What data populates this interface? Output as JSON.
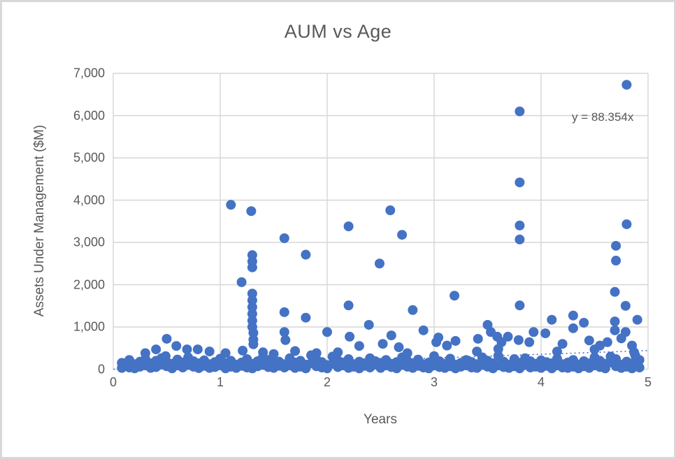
{
  "window": {
    "background": "#ffffff",
    "frame_border_color": "#d8d8d8"
  },
  "chart_data": {
    "type": "scatter",
    "title": "AUM vs Age",
    "xlabel": "Years",
    "ylabel": "Assets Under Management ($M)",
    "xlim": [
      0,
      5
    ],
    "ylim": [
      0,
      7000
    ],
    "grid": true,
    "legend": "none",
    "marker_color": "#4472C4",
    "text_color": "#595959",
    "gridline_color": "#d6d6d6",
    "xticks": [
      {
        "value": 0,
        "label": "0"
      },
      {
        "value": 1,
        "label": "1"
      },
      {
        "value": 2,
        "label": "2"
      },
      {
        "value": 3,
        "label": "3"
      },
      {
        "value": 4,
        "label": "4"
      },
      {
        "value": 5,
        "label": "5"
      }
    ],
    "yticks": [
      {
        "value": 0,
        "label": "0"
      },
      {
        "value": 1000,
        "label": "1,000"
      },
      {
        "value": 2000,
        "label": "2,000"
      },
      {
        "value": 3000,
        "label": "3,000"
      },
      {
        "value": 4000,
        "label": "4,000"
      },
      {
        "value": 5000,
        "label": "5,000"
      },
      {
        "value": 6000,
        "label": "6,000"
      },
      {
        "value": 7000,
        "label": "7,000"
      }
    ],
    "trendline": {
      "equation_label": "y = 88.354x",
      "slope": 88.354,
      "intercept": 0,
      "style": "dotted"
    },
    "points": [
      [
        0.3,
        380
      ],
      [
        0.4,
        470
      ],
      [
        0.49,
        310
      ],
      [
        0.5,
        720
      ],
      [
        0.59,
        550
      ],
      [
        0.69,
        470
      ],
      [
        0.79,
        470
      ],
      [
        0.9,
        420
      ],
      [
        1.05,
        380
      ],
      [
        1.1,
        3890
      ],
      [
        1.2,
        2060
      ],
      [
        1.21,
        440
      ],
      [
        1.29,
        3740
      ],
      [
        1.3,
        2700
      ],
      [
        1.3,
        2550
      ],
      [
        1.3,
        2410
      ],
      [
        1.3,
        1790
      ],
      [
        1.3,
        1630
      ],
      [
        1.3,
        1470
      ],
      [
        1.3,
        1310
      ],
      [
        1.3,
        1150
      ],
      [
        1.3,
        1000
      ],
      [
        1.31,
        860
      ],
      [
        1.31,
        700
      ],
      [
        1.31,
        590
      ],
      [
        1.4,
        400
      ],
      [
        1.5,
        360
      ],
      [
        1.6,
        3100
      ],
      [
        1.6,
        1350
      ],
      [
        1.6,
        880
      ],
      [
        1.61,
        690
      ],
      [
        1.7,
        430
      ],
      [
        1.8,
        2710
      ],
      [
        1.8,
        1220
      ],
      [
        1.9,
        380
      ],
      [
        2.0,
        880
      ],
      [
        2.1,
        400
      ],
      [
        2.2,
        3380
      ],
      [
        2.2,
        1510
      ],
      [
        2.21,
        770
      ],
      [
        2.3,
        550
      ],
      [
        2.39,
        1050
      ],
      [
        2.49,
        2500
      ],
      [
        2.52,
        600
      ],
      [
        2.59,
        3760
      ],
      [
        2.6,
        800
      ],
      [
        2.67,
        520
      ],
      [
        2.7,
        3180
      ],
      [
        2.75,
        380
      ],
      [
        2.8,
        1400
      ],
      [
        2.9,
        920
      ],
      [
        3.02,
        640
      ],
      [
        3.04,
        750
      ],
      [
        3.12,
        560
      ],
      [
        3.19,
        1740
      ],
      [
        3.2,
        670
      ],
      [
        3.4,
        420
      ],
      [
        3.41,
        720
      ],
      [
        3.5,
        1050
      ],
      [
        3.53,
        880
      ],
      [
        3.59,
        770
      ],
      [
        3.6,
        480
      ],
      [
        3.63,
        640
      ],
      [
        3.69,
        770
      ],
      [
        3.79,
        690
      ],
      [
        3.8,
        6100
      ],
      [
        3.8,
        4420
      ],
      [
        3.8,
        3400
      ],
      [
        3.8,
        3070
      ],
      [
        3.8,
        1510
      ],
      [
        3.89,
        640
      ],
      [
        3.93,
        880
      ],
      [
        4.04,
        850
      ],
      [
        4.1,
        1170
      ],
      [
        4.15,
        420
      ],
      [
        4.2,
        600
      ],
      [
        4.3,
        1270
      ],
      [
        4.3,
        970
      ],
      [
        4.4,
        1100
      ],
      [
        4.45,
        680
      ],
      [
        4.5,
        470
      ],
      [
        4.55,
        560
      ],
      [
        4.62,
        640
      ],
      [
        4.65,
        300
      ],
      [
        4.69,
        1830
      ],
      [
        4.69,
        1130
      ],
      [
        4.69,
        920
      ],
      [
        4.7,
        2920
      ],
      [
        4.7,
        2570
      ],
      [
        4.75,
        730
      ],
      [
        4.79,
        1500
      ],
      [
        4.79,
        880
      ],
      [
        4.8,
        6730
      ],
      [
        4.8,
        3430
      ],
      [
        4.85,
        560
      ],
      [
        4.87,
        400
      ],
      [
        4.9,
        1170
      ],
      [
        0.08,
        30
      ],
      [
        0.08,
        150
      ],
      [
        0.12,
        80
      ],
      [
        0.15,
        220
      ],
      [
        0.15,
        40
      ],
      [
        0.2,
        120
      ],
      [
        0.2,
        20
      ],
      [
        0.25,
        180
      ],
      [
        0.25,
        60
      ],
      [
        0.3,
        90
      ],
      [
        0.3,
        240
      ],
      [
        0.35,
        30
      ],
      [
        0.35,
        140
      ],
      [
        0.4,
        200
      ],
      [
        0.4,
        50
      ],
      [
        0.45,
        110
      ],
      [
        0.45,
        260
      ],
      [
        0.5,
        70
      ],
      [
        0.5,
        170
      ],
      [
        0.55,
        20
      ],
      [
        0.55,
        130
      ],
      [
        0.6,
        230
      ],
      [
        0.6,
        90
      ],
      [
        0.65,
        40
      ],
      [
        0.65,
        160
      ],
      [
        0.7,
        100
      ],
      [
        0.7,
        280
      ],
      [
        0.75,
        60
      ],
      [
        0.75,
        190
      ],
      [
        0.8,
        25
      ],
      [
        0.8,
        140
      ],
      [
        0.85,
        210
      ],
      [
        0.85,
        80
      ],
      [
        0.9,
        120
      ],
      [
        0.9,
        30
      ],
      [
        0.95,
        170
      ],
      [
        0.95,
        50
      ],
      [
        1.0,
        90
      ],
      [
        1.0,
        250
      ],
      [
        1.05,
        140
      ],
      [
        1.05,
        20
      ],
      [
        1.1,
        60
      ],
      [
        1.1,
        200
      ],
      [
        1.15,
        110
      ],
      [
        1.15,
        30
      ],
      [
        1.2,
        160
      ],
      [
        1.2,
        80
      ],
      [
        1.25,
        240
      ],
      [
        1.25,
        40
      ],
      [
        1.3,
        130
      ],
      [
        1.3,
        20
      ],
      [
        1.35,
        190
      ],
      [
        1.35,
        70
      ],
      [
        1.4,
        100
      ],
      [
        1.4,
        290
      ],
      [
        1.45,
        50
      ],
      [
        1.45,
        220
      ],
      [
        1.5,
        150
      ],
      [
        1.5,
        30
      ],
      [
        1.55,
        80
      ],
      [
        1.55,
        180
      ],
      [
        1.6,
        120
      ],
      [
        1.6,
        40
      ],
      [
        1.65,
        260
      ],
      [
        1.65,
        90
      ],
      [
        1.7,
        30
      ],
      [
        1.7,
        160
      ],
      [
        1.75,
        200
      ],
      [
        1.75,
        60
      ],
      [
        1.8,
        110
      ],
      [
        1.8,
        20
      ],
      [
        1.85,
        140
      ],
      [
        1.85,
        330
      ],
      [
        1.9,
        70
      ],
      [
        1.9,
        230
      ],
      [
        1.95,
        170
      ],
      [
        1.95,
        40
      ],
      [
        2.0,
        100
      ],
      [
        2.0,
        20
      ],
      [
        2.05,
        130
      ],
      [
        2.05,
        300
      ],
      [
        2.1,
        50
      ],
      [
        2.1,
        210
      ],
      [
        2.15,
        90
      ],
      [
        2.15,
        160
      ],
      [
        2.2,
        30
      ],
      [
        2.2,
        240
      ],
      [
        2.25,
        120
      ],
      [
        2.25,
        60
      ],
      [
        2.3,
        180
      ],
      [
        2.3,
        20
      ],
      [
        2.35,
        80
      ],
      [
        2.35,
        140
      ],
      [
        2.4,
        260
      ],
      [
        2.4,
        40
      ],
      [
        2.45,
        110
      ],
      [
        2.45,
        190
      ],
      [
        2.5,
        30
      ],
      [
        2.5,
        150
      ],
      [
        2.55,
        90
      ],
      [
        2.55,
        220
      ],
      [
        2.6,
        50
      ],
      [
        2.6,
        130
      ],
      [
        2.65,
        170
      ],
      [
        2.65,
        20
      ],
      [
        2.7,
        100
      ],
      [
        2.7,
        280
      ],
      [
        2.75,
        60
      ],
      [
        2.75,
        200
      ],
      [
        2.8,
        140
      ],
      [
        2.8,
        30
      ],
      [
        2.85,
        230
      ],
      [
        2.85,
        80
      ],
      [
        2.9,
        40
      ],
      [
        2.9,
        120
      ],
      [
        2.95,
        160
      ],
      [
        2.95,
        20
      ],
      [
        3.0,
        90
      ],
      [
        3.0,
        310
      ],
      [
        3.05,
        190
      ],
      [
        3.05,
        50
      ],
      [
        3.1,
        130
      ],
      [
        3.1,
        30
      ],
      [
        3.15,
        70
      ],
      [
        3.15,
        250
      ],
      [
        3.2,
        110
      ],
      [
        3.2,
        20
      ],
      [
        3.25,
        150
      ],
      [
        3.25,
        60
      ],
      [
        3.3,
        220
      ],
      [
        3.3,
        90
      ],
      [
        3.35,
        40
      ],
      [
        3.35,
        170
      ],
      [
        3.4,
        120
      ],
      [
        3.4,
        30
      ],
      [
        3.45,
        280
      ],
      [
        3.45,
        100
      ],
      [
        3.5,
        60
      ],
      [
        3.5,
        200
      ],
      [
        3.55,
        140
      ],
      [
        3.55,
        20
      ],
      [
        3.6,
        90
      ],
      [
        3.6,
        320
      ],
      [
        3.65,
        180
      ],
      [
        3.65,
        50
      ],
      [
        3.7,
        110
      ],
      [
        3.7,
        30
      ],
      [
        3.75,
        240
      ],
      [
        3.75,
        70
      ],
      [
        3.8,
        150
      ],
      [
        3.8,
        20
      ],
      [
        3.85,
        100
      ],
      [
        3.85,
        260
      ],
      [
        3.9,
        40
      ],
      [
        3.9,
        190
      ],
      [
        3.95,
        130
      ],
      [
        3.95,
        60
      ],
      [
        4.0,
        210
      ],
      [
        4.0,
        30
      ],
      [
        4.05,
        80
      ],
      [
        4.05,
        170
      ],
      [
        4.1,
        20
      ],
      [
        4.1,
        140
      ],
      [
        4.15,
        250
      ],
      [
        4.15,
        90
      ],
      [
        4.2,
        120
      ],
      [
        4.2,
        40
      ],
      [
        4.25,
        160
      ],
      [
        4.25,
        30
      ],
      [
        4.3,
        60
      ],
      [
        4.3,
        220
      ],
      [
        4.35,
        110
      ],
      [
        4.35,
        20
      ],
      [
        4.4,
        190
      ],
      [
        4.4,
        70
      ],
      [
        4.45,
        140
      ],
      [
        4.45,
        30
      ],
      [
        4.5,
        90
      ],
      [
        4.5,
        280
      ],
      [
        4.55,
        200
      ],
      [
        4.55,
        50
      ],
      [
        4.6,
        130
      ],
      [
        4.6,
        20
      ],
      [
        4.65,
        160
      ],
      [
        4.7,
        70
      ],
      [
        4.7,
        240
      ],
      [
        4.75,
        110
      ],
      [
        4.75,
        30
      ],
      [
        4.8,
        180
      ],
      [
        4.8,
        60
      ],
      [
        4.85,
        140
      ],
      [
        4.85,
        20
      ],
      [
        4.88,
        90
      ],
      [
        4.88,
        330
      ],
      [
        4.92,
        220
      ],
      [
        4.92,
        40
      ]
    ]
  }
}
